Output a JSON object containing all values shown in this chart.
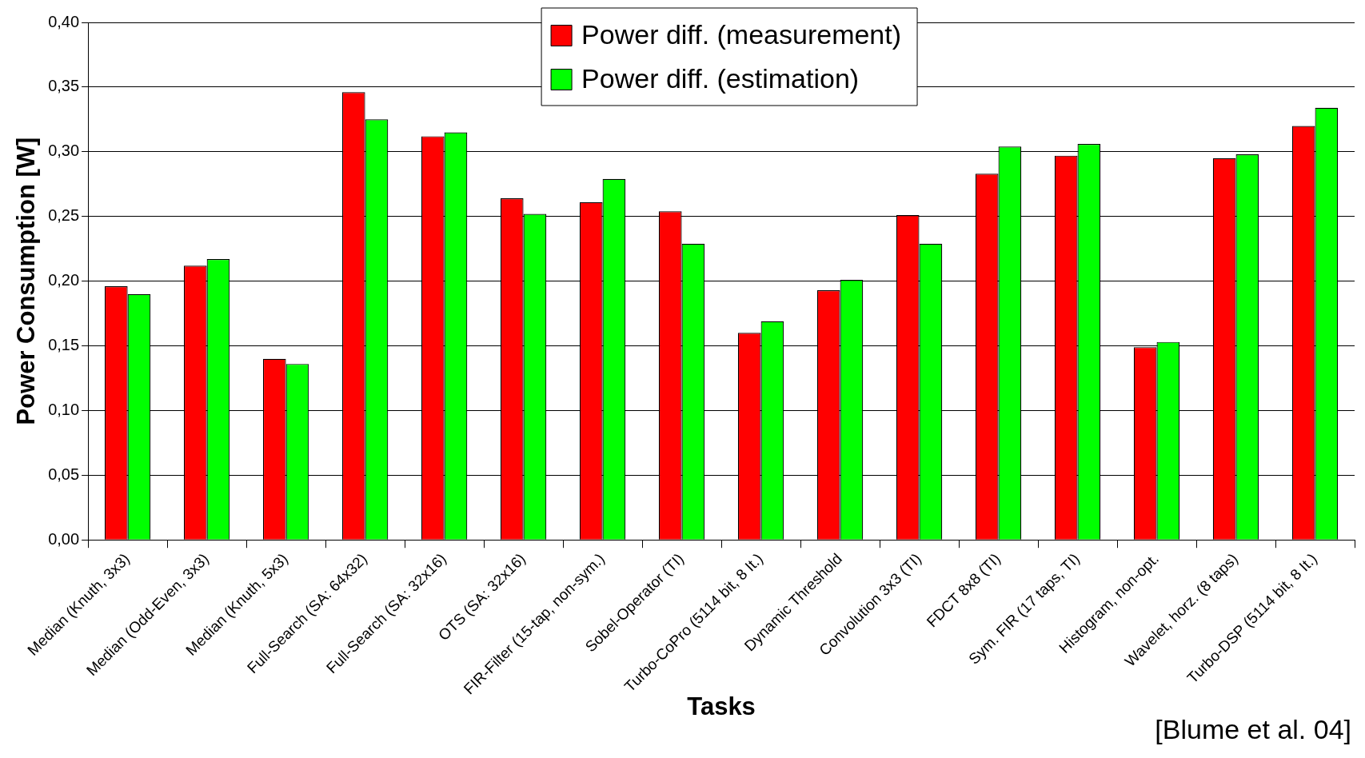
{
  "chart_data": {
    "type": "bar",
    "xlabel": "Tasks",
    "ylabel": "Power Consumption [W]",
    "categories": [
      "Median (Knuth, 3x3)",
      "Median (Odd-Even, 3x3)",
      "Median (Knuth, 5x3)",
      "Full-Search (SA: 64x32)",
      "Full-Search (SA: 32x16)",
      "OTS (SA: 32x16)",
      "FIR-Filter (15-tap, non-sym.)",
      "Sobel-Operator (TI)",
      "Turbo-CoPro (5114 bit, 8 It.)",
      "Dynamic Threshold",
      "Convolution 3x3 (TI)",
      "FDCT 8x8 (TI)",
      "Sym. FIR (17 taps, TI)",
      "Histogram, non-opt.",
      "Wavelet, horz. (8 taps)",
      "Turbo-DSP (5114 bit, 8 It.)"
    ],
    "series": [
      {
        "name": "Power diff. (measurement)",
        "color": "#ff0000",
        "values": [
          0.196,
          0.212,
          0.14,
          0.346,
          0.312,
          0.264,
          0.261,
          0.254,
          0.16,
          0.193,
          0.251,
          0.283,
          0.297,
          0.149,
          0.295,
          0.32
        ]
      },
      {
        "name": "Power diff. (estimation)",
        "color": "#00ff00",
        "values": [
          0.19,
          0.217,
          0.136,
          0.325,
          0.315,
          0.252,
          0.279,
          0.229,
          0.169,
          0.201,
          0.229,
          0.304,
          0.306,
          0.153,
          0.298,
          0.334
        ]
      }
    ],
    "ylim": [
      0,
      0.4
    ],
    "yticks": [
      {
        "value": 0,
        "label": "0,00"
      },
      {
        "value": 0.05,
        "label": "0,05"
      },
      {
        "value": 0.1,
        "label": "0,10"
      },
      {
        "value": 0.15,
        "label": "0,15"
      },
      {
        "value": 0.2,
        "label": "0,20"
      },
      {
        "value": 0.25,
        "label": "0,25"
      },
      {
        "value": 0.3,
        "label": "0,30"
      },
      {
        "value": 0.35,
        "label": "0,35"
      },
      {
        "value": 0.4,
        "label": "0,40"
      }
    ],
    "grid": "y",
    "legend": "top",
    "annotations": [
      "[Blume et al. 04]"
    ]
  }
}
